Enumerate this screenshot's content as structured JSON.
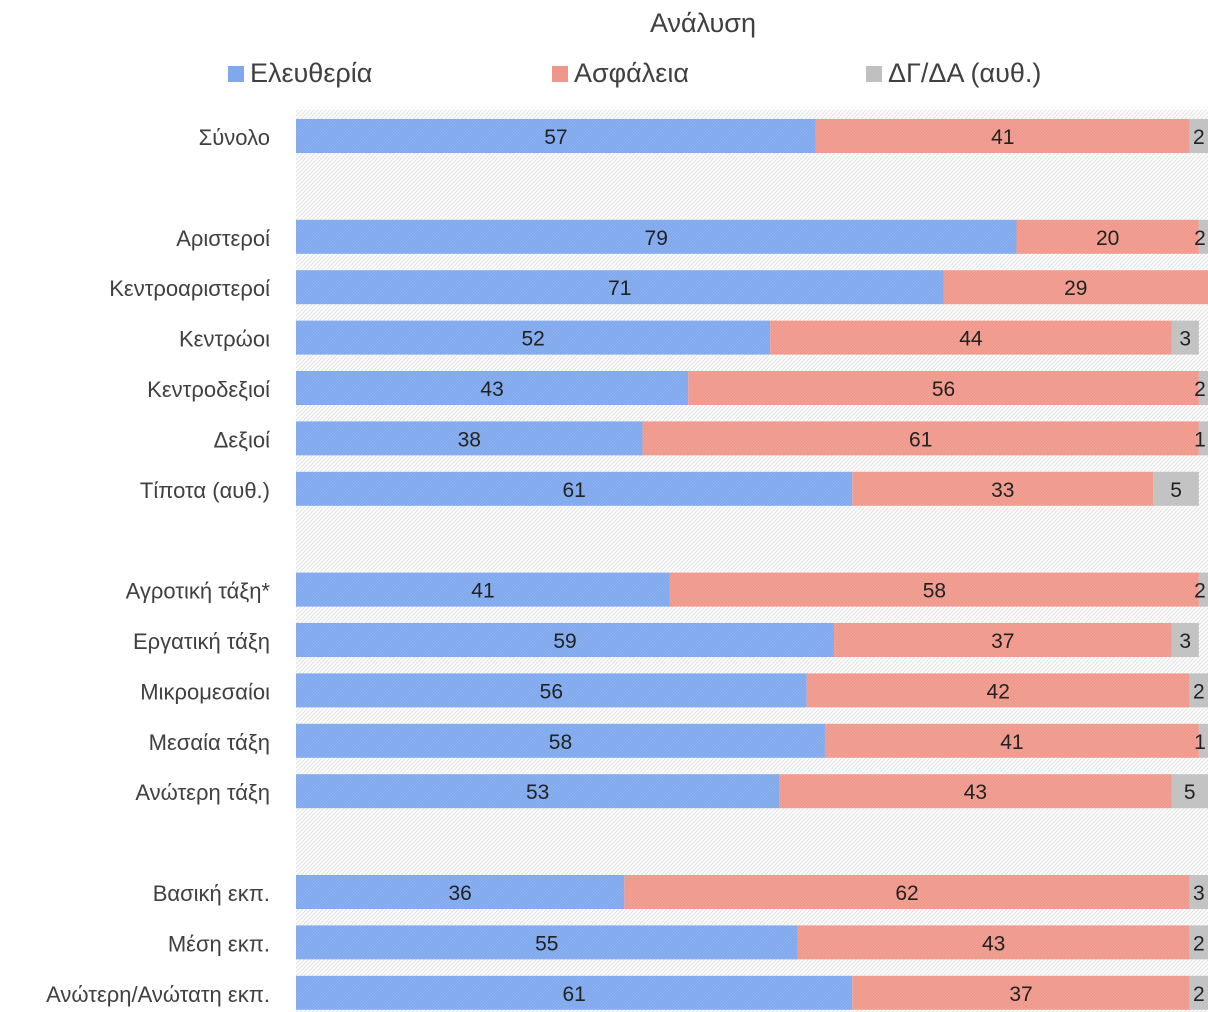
{
  "chart_data": {
    "type": "bar",
    "orientation": "horizontal",
    "stacked": true,
    "title": "Ανάλυση",
    "legend_position": "top",
    "xlim": [
      0,
      100
    ],
    "categories": [
      "Σύνολο",
      "",
      "Αριστεροί",
      "Κεντροαριστεροί",
      "Κεντρώοι",
      "Κεντροδεξιοί",
      "Δεξιοί",
      "Τίποτα (αυθ.)",
      "",
      "Αγροτική τάξη*",
      "Εργατική τάξη",
      "Μικρομεσαίοι",
      "Μεσαία τάξη",
      "Ανώτερη τάξη",
      "",
      "Βασική εκπ.",
      "Μέση εκπ.",
      "Ανώτερη/Ανώτατη εκπ."
    ],
    "series": [
      {
        "name": "Ελευθερία",
        "color": "#7fa8ee",
        "values": [
          57,
          null,
          79,
          71,
          52,
          43,
          38,
          61,
          null,
          41,
          59,
          56,
          58,
          53,
          null,
          36,
          55,
          61
        ]
      },
      {
        "name": "Ασφάλεια",
        "color": "#f0978b",
        "values": [
          41,
          null,
          20,
          29,
          44,
          56,
          61,
          33,
          null,
          58,
          37,
          42,
          41,
          43,
          null,
          62,
          43,
          37
        ]
      },
      {
        "name": "ΔΓ/ΔΑ (αυθ.)",
        "color": "#c0c0c0",
        "values": [
          2,
          null,
          2,
          null,
          3,
          2,
          1,
          5,
          null,
          2,
          3,
          2,
          1,
          5,
          null,
          3,
          2,
          2
        ]
      }
    ]
  }
}
